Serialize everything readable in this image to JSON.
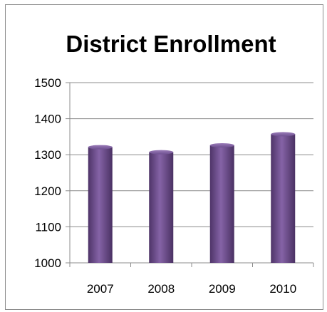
{
  "chart_data": {
    "type": "bar",
    "title": "District Enrollment",
    "xlabel": "",
    "ylabel": "",
    "categories": [
      "2007",
      "2008",
      "2009",
      "2010"
    ],
    "values": [
      1321,
      1307,
      1326,
      1357
    ],
    "ylim": [
      1000,
      1500
    ],
    "yticks": [
      1000,
      1100,
      1200,
      1300,
      1400,
      1500
    ],
    "grid": true,
    "legend": "none",
    "bar_color": "#6b4c8a"
  }
}
